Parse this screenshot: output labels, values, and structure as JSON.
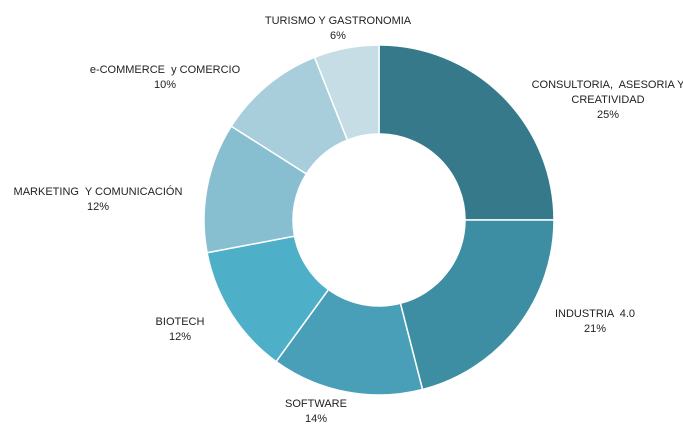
{
  "chart_data": {
    "type": "donut",
    "categories": [
      "CONSULTORIA,  ASESORIA Y CREATIVIDAD",
      "INDUSTRIA  4.0",
      "SOFTWARE",
      "BIOTECH",
      "MARKETING  Y COMUNICACIÓN",
      "e-COMMERCE  y COMERCIO",
      "TURISMO Y GASTRONOMIA"
    ],
    "values": [
      25,
      21,
      14,
      12,
      12,
      10,
      6
    ],
    "value_labels": [
      "25%",
      "21%",
      "14%",
      "12%",
      "12%",
      "10%",
      "6%"
    ],
    "colors": [
      "#35798a",
      "#3d8ea3",
      "#4a9fb8",
      "#4eb0c8",
      "#87bfd1",
      "#a8cddb",
      "#c6dde6"
    ]
  }
}
